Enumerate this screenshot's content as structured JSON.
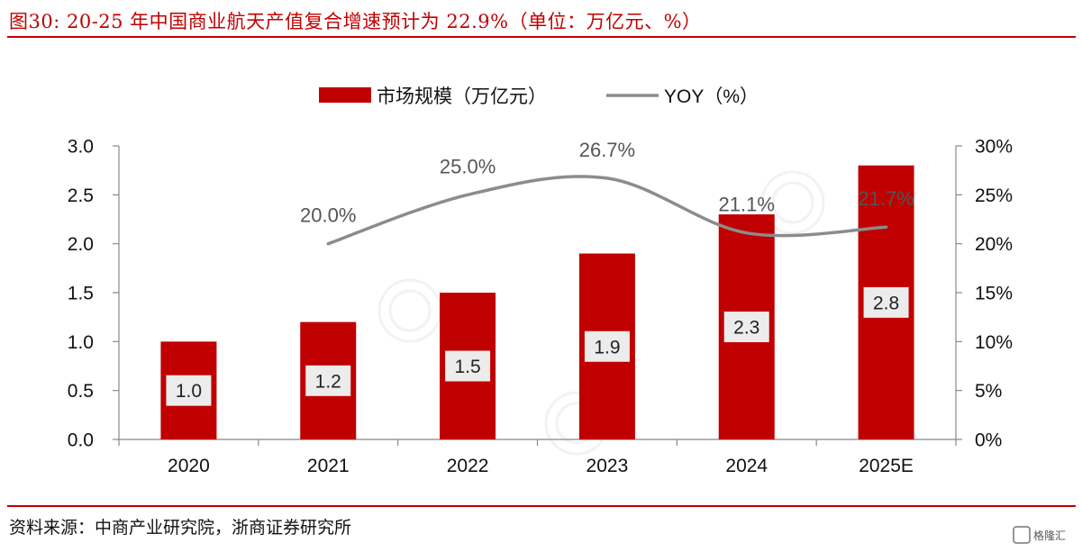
{
  "header": {
    "title": "图30:   20-25 年中国商业航天产值复合增速预计为 22.9%（单位：万亿元、%）"
  },
  "footer": {
    "source": "资料来源：中商产业研究院，浙商证券研究所"
  },
  "brand": {
    "label": "格隆汇"
  },
  "colors": {
    "accent": "#c00000",
    "bar": "#c00000",
    "line": "#8c8c8c",
    "label_box": "#ececec"
  },
  "chart_data": {
    "type": "bar",
    "categories": [
      "2020",
      "2021",
      "2022",
      "2023",
      "2024",
      "2025E"
    ],
    "series": [
      {
        "name": "市场规模（万亿元）",
        "type": "bar",
        "axis": "left",
        "values": [
          1.0,
          1.2,
          1.5,
          1.9,
          2.3,
          2.8
        ],
        "labels": [
          "1.0",
          "1.2",
          "1.5",
          "1.9",
          "2.3",
          "2.8"
        ]
      },
      {
        "name": "YOY（%）",
        "type": "line",
        "axis": "right",
        "smooth": true,
        "values": [
          null,
          20.0,
          25.0,
          26.7,
          21.1,
          21.7
        ],
        "labels": [
          "",
          "20.0%",
          "25.0%",
          "26.7%",
          "21.1%",
          "21.7%"
        ]
      }
    ],
    "y_left": {
      "ylim": [
        0,
        3.0
      ],
      "ticks": [
        0,
        0.5,
        1.0,
        1.5,
        2.0,
        2.5,
        3.0
      ],
      "tick_labels": [
        "0.0",
        "0.5",
        "1.0",
        "1.5",
        "2.0",
        "2.5",
        "3.0"
      ]
    },
    "y_right": {
      "ylim": [
        0,
        30
      ],
      "ticks": [
        0,
        5,
        10,
        15,
        20,
        25,
        30
      ],
      "tick_labels": [
        "0%",
        "5%",
        "10%",
        "15%",
        "20%",
        "25%",
        "30%"
      ]
    },
    "grid": false,
    "legend_position": "top-center"
  }
}
